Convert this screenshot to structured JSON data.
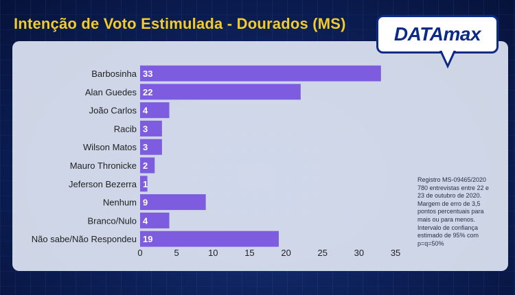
{
  "title": "Intenção de Voto Estimulada - Dourados (MS)",
  "logo": {
    "text": "DATAmax"
  },
  "colors": {
    "bar": "#7e5ce0",
    "title": "#f3cc2a",
    "bar_label": "#ffffff",
    "text": "#222222"
  },
  "chart_data": {
    "type": "bar",
    "orientation": "horizontal",
    "categories": [
      "Barbosinha",
      "Alan Guedes",
      "João Carlos",
      "Racib",
      "Wilson Matos",
      "Mauro Thronicke",
      "Jeferson Bezerra",
      "Nenhum",
      "Branco/Nulo",
      "Não sabe/Não Respondeu"
    ],
    "values": [
      33,
      22,
      4,
      3,
      3,
      2,
      1,
      9,
      4,
      19
    ],
    "data_labels": [
      "33",
      "22",
      "4",
      "3",
      "3",
      "2",
      "1",
      "9",
      "4",
      "19"
    ],
    "xlim": [
      0,
      35
    ],
    "x_ticks": [
      "0",
      "5",
      "10",
      "15",
      "20",
      "25",
      "30",
      "35"
    ],
    "grid": false,
    "title": "Intenção de Voto Estimulada - Dourados (MS)",
    "xlabel": "",
    "ylabel": ""
  },
  "note": {
    "lines": [
      "Registro MS-09465/2020",
      "780 entrevistas entre 22 e",
      "23 de outubro de 2020.",
      "Margem de erro de 3,5",
      "pontos percentuais para",
      "mais ou para menos.",
      "Intervalo de confiança",
      "estimado de 95% com",
      "p=q=50%"
    ]
  }
}
